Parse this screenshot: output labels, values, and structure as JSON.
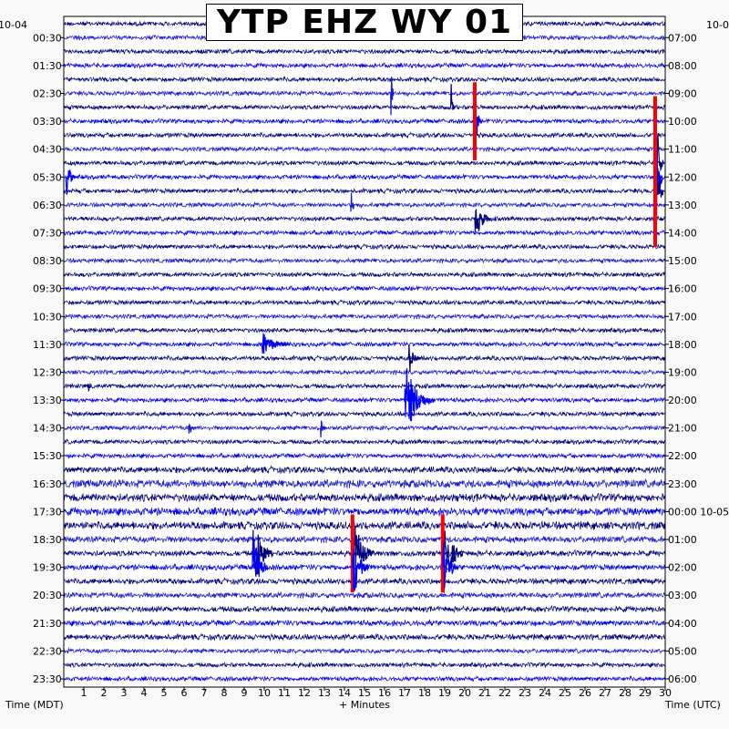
{
  "chart_data": {
    "type": "line",
    "title": "YTP EHZ WY 01",
    "xlabel": "+ Minutes",
    "left_axis_label": "Time (MDT)",
    "right_axis_label": "Time (UTC)",
    "left_date_label": "10-04",
    "right_date_label": "10-0",
    "xlim": [
      0,
      30
    ],
    "x_ticks": [
      "1",
      "2",
      "3",
      "4",
      "5",
      "6",
      "7",
      "8",
      "9",
      "10",
      "11",
      "12",
      "13",
      "14",
      "15",
      "16",
      "17",
      "18",
      "19",
      "20",
      "21",
      "22",
      "23",
      "24",
      "25",
      "26",
      "27",
      "28",
      "29",
      "30"
    ],
    "trace_count": 48,
    "trace_minutes": 30,
    "trace_colors": [
      "#000080",
      "#1c1cd8",
      "#000080",
      "#0000ff"
    ],
    "clip_color": "#ff0000",
    "left_ticks": [
      "00:30",
      "01:30",
      "02:30",
      "03:30",
      "04:30",
      "05:30",
      "06:30",
      "07:30",
      "08:30",
      "09:30",
      "10:30",
      "11:30",
      "12:30",
      "13:30",
      "14:30",
      "15:30",
      "16:30",
      "17:30",
      "18:30",
      "19:30",
      "20:30",
      "21:30",
      "22:30",
      "23:30"
    ],
    "right_ticks": [
      "07:00",
      "08:00",
      "09:00",
      "10:00",
      "11:00",
      "12:00",
      "13:00",
      "14:00",
      "15:00",
      "16:00",
      "17:00",
      "18:00",
      "19:00",
      "20:00",
      "21:00",
      "22:00",
      "23:00",
      "00:00 10-05",
      "01:00",
      "02:00",
      "03:00",
      "04:00",
      "05:00",
      "06:00"
    ],
    "events": [
      {
        "trace": 5,
        "minute": 16.3,
        "amplitude": 2.5,
        "duration_min": 0.2
      },
      {
        "trace": 6,
        "minute": 19.3,
        "amplitude": 2.5,
        "duration_min": 0.2
      },
      {
        "trace": 7,
        "minute": 20.5,
        "amplitude": 3.5,
        "duration_min": 0.3,
        "clip": true
      },
      {
        "trace": 10,
        "minute": 29.5,
        "amplitude": 6,
        "duration_min": 0.4,
        "clip": true
      },
      {
        "trace": 11,
        "minute": 29.5,
        "amplitude": 5,
        "duration_min": 0.4,
        "clip": true
      },
      {
        "trace": 12,
        "minute": 29.5,
        "amplitude": 5,
        "duration_min": 0.4,
        "clip": true
      },
      {
        "trace": 11,
        "minute": 0.1,
        "amplitude": 1.8,
        "duration_min": 0.5
      },
      {
        "trace": 13,
        "minute": 14.3,
        "amplitude": 2.5,
        "duration_min": 0.2
      },
      {
        "trace": 14,
        "minute": 20.5,
        "amplitude": 2.2,
        "duration_min": 0.8
      },
      {
        "trace": 23,
        "minute": 9.8,
        "amplitude": 1.2,
        "duration_min": 1.5
      },
      {
        "trace": 24,
        "minute": 17.2,
        "amplitude": 1.5,
        "duration_min": 0.6
      },
      {
        "trace": 26,
        "minute": 1.2,
        "amplitude": 1.0,
        "duration_min": 0.2
      },
      {
        "trace": 27,
        "minute": 17.0,
        "amplitude": 3.0,
        "duration_min": 1.5
      },
      {
        "trace": 29,
        "minute": 6.2,
        "amplitude": 1.0,
        "duration_min": 0.4
      },
      {
        "trace": 29,
        "minute": 12.8,
        "amplitude": 1.0,
        "duration_min": 0.3
      },
      {
        "trace": 38,
        "minute": 9.4,
        "amplitude": 3.5,
        "duration_min": 1.0
      },
      {
        "trace": 39,
        "minute": 9.4,
        "amplitude": 3.0,
        "duration_min": 0.8
      },
      {
        "trace": 38,
        "minute": 14.4,
        "amplitude": 3.5,
        "duration_min": 1.0,
        "clip": true
      },
      {
        "trace": 39,
        "minute": 14.4,
        "amplitude": 3.0,
        "duration_min": 0.8
      },
      {
        "trace": 38,
        "minute": 18.9,
        "amplitude": 3.5,
        "duration_min": 1.0,
        "clip": true
      },
      {
        "trace": 39,
        "minute": 18.9,
        "amplitude": 2.5,
        "duration_min": 0.8
      }
    ]
  }
}
